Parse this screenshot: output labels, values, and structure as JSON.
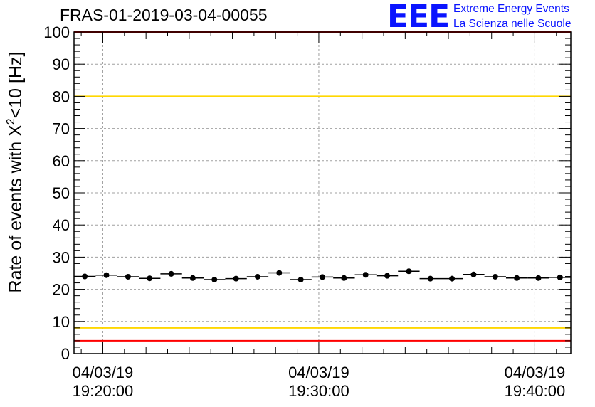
{
  "header": {
    "run_title": "FRAS-01-2019-03-04-00055",
    "logo_mark": "EEE",
    "logo_line1": "Extreme Energy Events",
    "logo_line2": "La Scienza nelle Scuole"
  },
  "colors": {
    "markers": "#000000",
    "red_limit": "#ff0000",
    "yellow_limit": "#ffd700",
    "grid": "#a0a0a0",
    "logo": "#0a14ff"
  },
  "chart_data": {
    "type": "scatter",
    "title": "FRAS-01-2019-03-04-00055",
    "ylabel": "Rate of events with X^2<10 [Hz]",
    "ylabel_parts": {
      "prefix": "Rate of events with X",
      "sup": "2",
      "suffix": "<10 [Hz]"
    },
    "ylim": [
      0,
      100
    ],
    "y_ticks": [
      0,
      10,
      20,
      30,
      40,
      50,
      60,
      70,
      80,
      90,
      100
    ],
    "xlim": [
      "04/03/19 19:18:40",
      "04/03/19 19:41:40"
    ],
    "x_ticks": [
      {
        "value": "04/03/19 19:20:00",
        "date": "04/03/19",
        "time": "19:20:00"
      },
      {
        "value": "04/03/19 19:30:00",
        "date": "04/03/19",
        "time": "19:30:00"
      },
      {
        "value": "04/03/19 19:40:00",
        "date": "04/03/19",
        "time": "19:40:00"
      }
    ],
    "grid": true,
    "bin_width_seconds": 60,
    "x": [
      "19:19:10",
      "19:20:10",
      "19:21:10",
      "19:22:10",
      "19:23:10",
      "19:24:10",
      "19:25:10",
      "19:26:10",
      "19:27:10",
      "19:28:10",
      "19:29:10",
      "19:30:10",
      "19:31:10",
      "19:32:10",
      "19:33:10",
      "19:34:10",
      "19:35:10",
      "19:36:10",
      "19:37:10",
      "19:38:10",
      "19:39:10",
      "19:40:10",
      "19:41:10"
    ],
    "values": [
      24.0,
      24.4,
      23.9,
      23.4,
      24.8,
      23.5,
      23.0,
      23.3,
      23.9,
      25.1,
      23.0,
      23.8,
      23.5,
      24.5,
      24.2,
      25.6,
      23.3,
      23.3,
      24.6,
      23.9,
      23.5,
      23.5,
      23.7
    ],
    "reference_lines": [
      {
        "y": 100,
        "color": "red"
      },
      {
        "y": 80,
        "color": "yellow"
      },
      {
        "y": 8,
        "color": "yellow"
      },
      {
        "y": 4,
        "color": "red"
      }
    ]
  }
}
